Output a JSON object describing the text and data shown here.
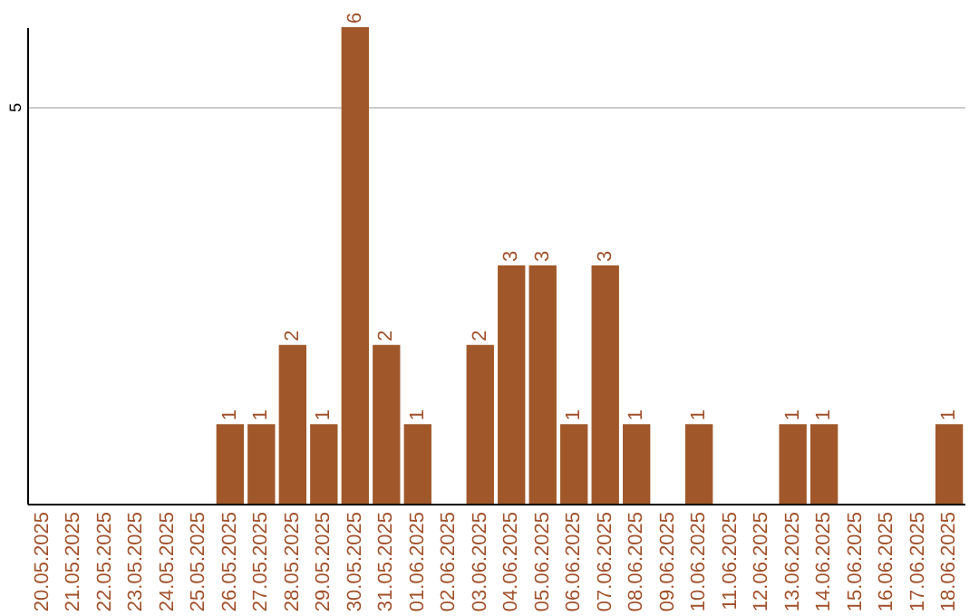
{
  "chart_data": {
    "type": "bar",
    "categories": [
      "20.05.2025",
      "21.05.2025",
      "22.05.2025",
      "23.05.2025",
      "24.05.2025",
      "25.05.2025",
      "26.05.2025",
      "27.05.2025",
      "28.05.2025",
      "29.05.2025",
      "30.05.2025",
      "31.05.2025",
      "01.06.2025",
      "02.06.2025",
      "03.06.2025",
      "04.06.2025",
      "05.06.2025",
      "06.06.2025",
      "07.06.2025",
      "08.06.2025",
      "09.06.2025",
      "10.06.2025",
      "11.06.2025",
      "12.06.2025",
      "13.06.2025",
      "14.06.2025",
      "15.06.2025",
      "16.06.2025",
      "17.06.2025",
      "18.06.2025"
    ],
    "values": [
      0,
      0,
      0,
      0,
      0,
      0,
      1,
      1,
      2,
      1,
      6,
      2,
      1,
      0,
      2,
      3,
      3,
      1,
      3,
      1,
      0,
      1,
      0,
      0,
      1,
      1,
      0,
      0,
      0,
      1
    ],
    "value_labels": [
      null,
      null,
      null,
      null,
      null,
      null,
      "1",
      "1",
      "2",
      "1",
      "6",
      "2",
      "1",
      null,
      "2",
      "3",
      "3",
      "1",
      "3",
      "1",
      null,
      "1",
      null,
      null,
      "1",
      "1",
      null,
      null,
      null,
      "1"
    ],
    "color": "#a0582a",
    "ylim": [
      0,
      6
    ],
    "yticks": [
      5
    ],
    "grid": "y"
  }
}
